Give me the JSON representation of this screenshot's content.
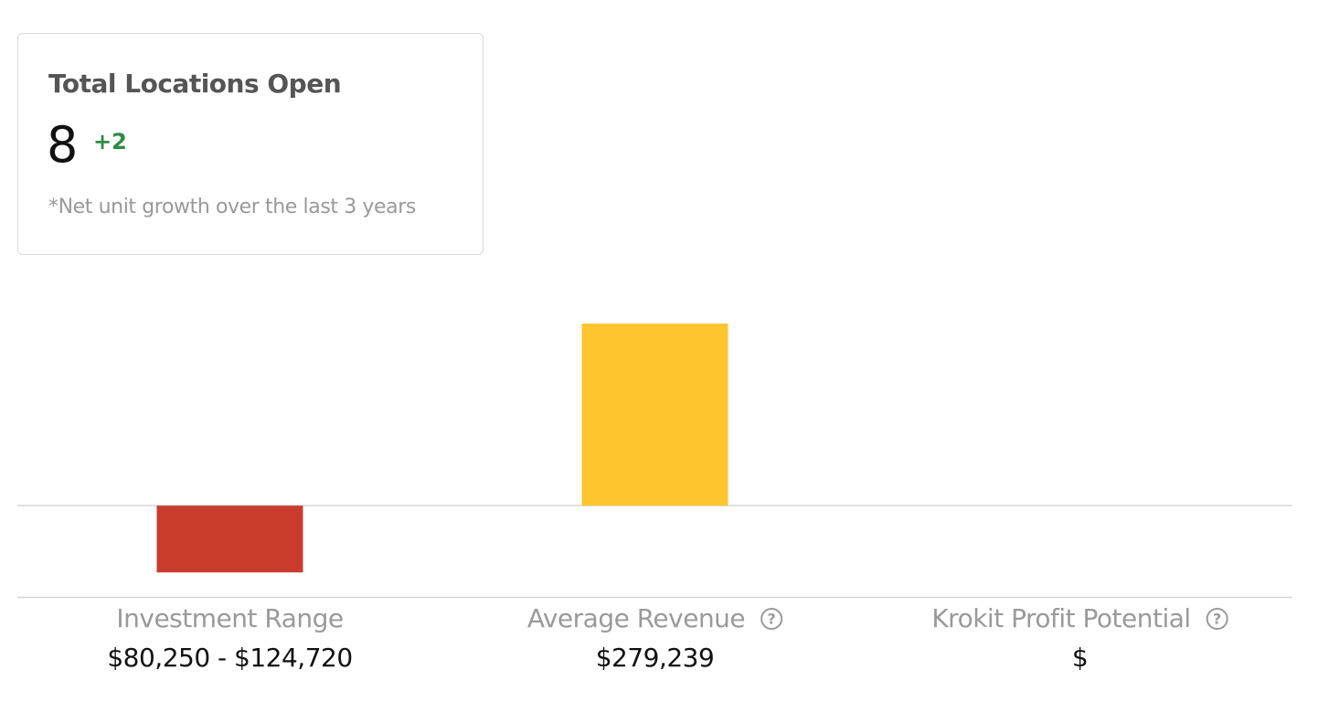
{
  "card": {
    "title": "Total Locations Open",
    "value": 8,
    "change": "+2",
    "note": "*Net unit growth over the last 3 years"
  },
  "chart_data": {
    "type": "bar",
    "categories": [
      "Investment Range",
      "Average Revenue",
      "Krokit Profit Potential"
    ],
    "values": [
      -102485,
      279239,
      null
    ],
    "colors": [
      "#c93c2d",
      "#fec52e",
      null
    ],
    "stat_values": [
      "$80,250 - $124,720",
      "$279,239",
      "$"
    ],
    "ylim": [
      -140000,
      280000
    ]
  }
}
